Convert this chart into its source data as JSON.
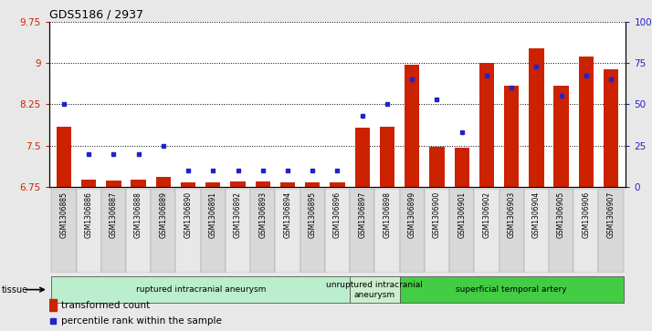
{
  "title": "GDS5186 / 2937",
  "samples": [
    "GSM1306885",
    "GSM1306886",
    "GSM1306887",
    "GSM1306888",
    "GSM1306889",
    "GSM1306890",
    "GSM1306891",
    "GSM1306892",
    "GSM1306893",
    "GSM1306894",
    "GSM1306895",
    "GSM1306896",
    "GSM1306897",
    "GSM1306898",
    "GSM1306899",
    "GSM1306900",
    "GSM1306901",
    "GSM1306902",
    "GSM1306903",
    "GSM1306904",
    "GSM1306905",
    "GSM1306906",
    "GSM1306907"
  ],
  "transformed_count": [
    7.85,
    6.88,
    6.86,
    6.88,
    6.93,
    6.84,
    6.83,
    6.85,
    6.85,
    6.84,
    6.83,
    6.83,
    7.82,
    7.85,
    8.97,
    7.48,
    7.47,
    9.0,
    8.58,
    9.27,
    8.58,
    9.12,
    8.88
  ],
  "percentile_rank": [
    50,
    20,
    20,
    20,
    25,
    10,
    10,
    10,
    10,
    10,
    10,
    10,
    43,
    50,
    65,
    53,
    33,
    67,
    60,
    73,
    55,
    67,
    65
  ],
  "ylim_left": [
    6.75,
    9.75
  ],
  "ylim_right": [
    0,
    100
  ],
  "yticks_left": [
    6.75,
    7.5,
    8.25,
    9.0,
    9.75
  ],
  "ytick_labels_left": [
    "6.75",
    "7.5",
    "8.25",
    "9",
    "9.75"
  ],
  "yticks_right": [
    0,
    25,
    50,
    75,
    100
  ],
  "ytick_labels_right": [
    "0",
    "25",
    "50",
    "75",
    "100%"
  ],
  "bar_color": "#cc2200",
  "dot_color": "#2222cc",
  "groups": [
    {
      "label": "ruptured intracranial aneurysm",
      "start": 0,
      "end": 12,
      "color": "#bbeecc"
    },
    {
      "label": "unruptured intracranial\naneurysm",
      "start": 12,
      "end": 14,
      "color": "#cceecc"
    },
    {
      "label": "superficial temporal artery",
      "start": 14,
      "end": 23,
      "color": "#44cc44"
    }
  ],
  "tissue_label": "tissue",
  "legend_bar_label": "transformed count",
  "legend_dot_label": "percentile rank within the sample",
  "fig_bg_color": "#e8e8e8",
  "plot_bg_color": "#ffffff",
  "base_value": 6.75,
  "label_box_color": "#d8d8d8"
}
